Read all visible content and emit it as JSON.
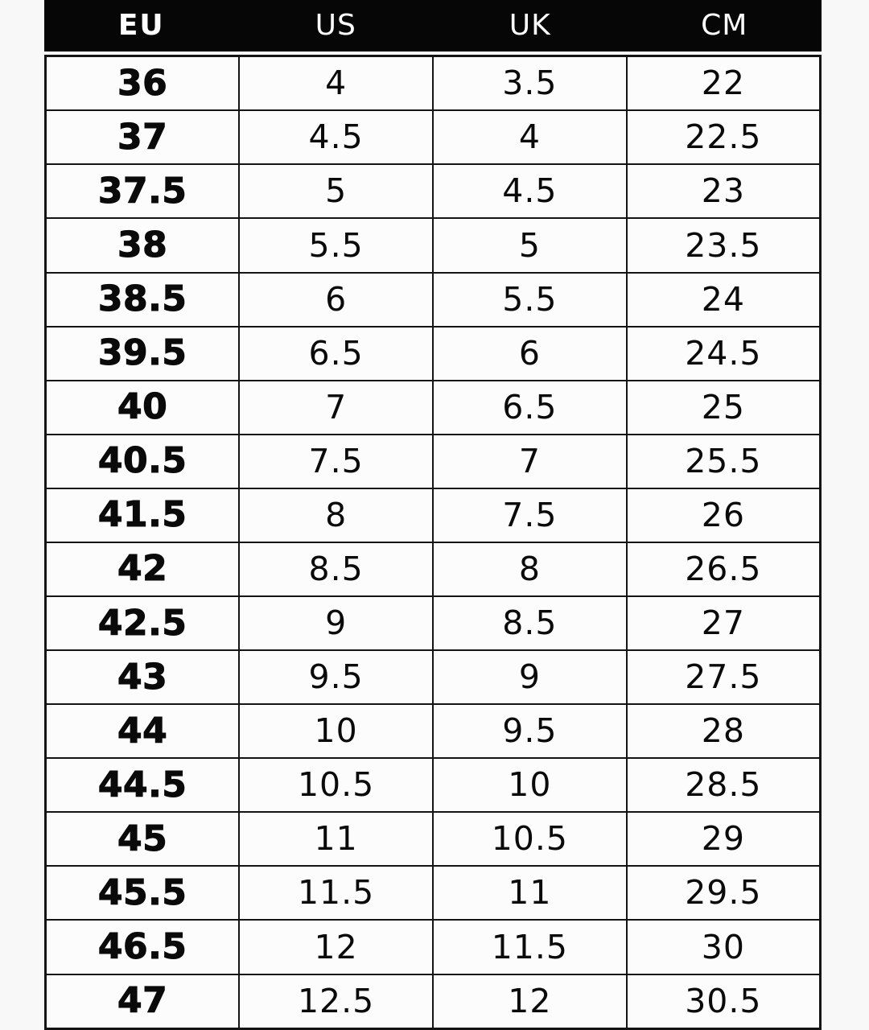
{
  "colors": {
    "page_bg": "#f8f8f8",
    "header_bg": "#060606",
    "header_text": "#ffffff",
    "cell_bg": "#fcfcfc",
    "cell_text": "#0a0a0a",
    "border": "#141414"
  },
  "chart_data": {
    "type": "table",
    "columns": [
      "EU",
      "US",
      "UK",
      "CM"
    ],
    "rows": [
      {
        "eu": "36",
        "us": "4",
        "uk": "3.5",
        "cm": "22"
      },
      {
        "eu": "37",
        "us": "4.5",
        "uk": "4",
        "cm": "22.5"
      },
      {
        "eu": "37.5",
        "us": "5",
        "uk": "4.5",
        "cm": "23"
      },
      {
        "eu": "38",
        "us": "5.5",
        "uk": "5",
        "cm": "23.5"
      },
      {
        "eu": "38.5",
        "us": "6",
        "uk": "5.5",
        "cm": "24"
      },
      {
        "eu": "39.5",
        "us": "6.5",
        "uk": "6",
        "cm": "24.5"
      },
      {
        "eu": "40",
        "us": "7",
        "uk": "6.5",
        "cm": "25"
      },
      {
        "eu": "40.5",
        "us": "7.5",
        "uk": "7",
        "cm": "25.5"
      },
      {
        "eu": "41.5",
        "us": "8",
        "uk": "7.5",
        "cm": "26"
      },
      {
        "eu": "42",
        "us": "8.5",
        "uk": "8",
        "cm": "26.5"
      },
      {
        "eu": "42.5",
        "us": "9",
        "uk": "8.5",
        "cm": "27"
      },
      {
        "eu": "43",
        "us": "9.5",
        "uk": "9",
        "cm": "27.5"
      },
      {
        "eu": "44",
        "us": "10",
        "uk": "9.5",
        "cm": "28"
      },
      {
        "eu": "44.5",
        "us": "10.5",
        "uk": "10",
        "cm": "28.5"
      },
      {
        "eu": "45",
        "us": "11",
        "uk": "10.5",
        "cm": "29"
      },
      {
        "eu": "45.5",
        "us": "11.5",
        "uk": "11",
        "cm": "29.5"
      },
      {
        "eu": "46.5",
        "us": "12",
        "uk": "11.5",
        "cm": "30"
      },
      {
        "eu": "47",
        "us": "12.5",
        "uk": "12",
        "cm": "30.5"
      }
    ]
  }
}
